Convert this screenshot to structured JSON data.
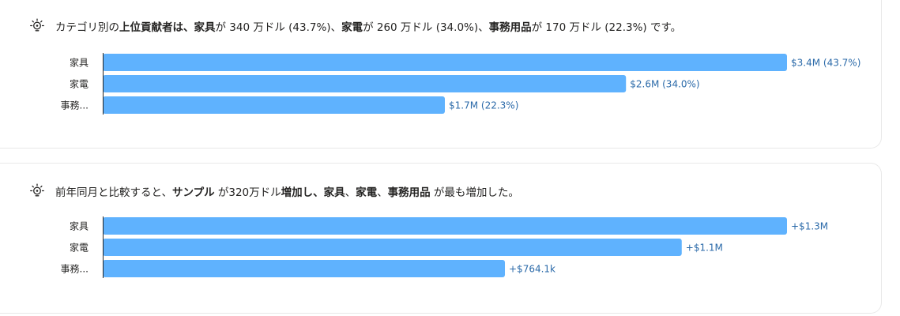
{
  "insights": [
    {
      "segments": [
        {
          "text": "カテゴリ別の",
          "bold": false
        },
        {
          "text": "上位貢献者は、家具",
          "bold": true
        },
        {
          "text": "が 340 万ドル (43.7%)、",
          "bold": false
        },
        {
          "text": "家電",
          "bold": true
        },
        {
          "text": "が 260 万ドル (34.0%)、",
          "bold": false
        },
        {
          "text": "事務用品",
          "bold": true
        },
        {
          "text": "が 170 万ドル (22.3%) です。",
          "bold": false
        }
      ]
    },
    {
      "segments": [
        {
          "text": "前年同月と比較すると、",
          "bold": false
        },
        {
          "text": "サンプル",
          "bold": true
        },
        {
          "text": " が320万ドル",
          "bold": false
        },
        {
          "text": "増加し、家具",
          "bold": true
        },
        {
          "text": "、",
          "bold": false
        },
        {
          "text": "家電",
          "bold": true
        },
        {
          "text": "、",
          "bold": false
        },
        {
          "text": "事務用品",
          "bold": true
        },
        {
          "text": " が最も増加した。",
          "bold": false
        }
      ]
    }
  ],
  "icon": "lightbulb-icon",
  "colors": {
    "bar": "#5fb2fe",
    "label": "#2b6aa9",
    "axis": "#252423",
    "category": "#252423"
  },
  "chart_data": [
    {
      "type": "bar",
      "orientation": "horizontal",
      "categories": [
        "家具",
        "家電",
        "事務..."
      ],
      "values": [
        3.4,
        2.6,
        1.7
      ],
      "unit": "$M",
      "data_labels": [
        "$3.4M (43.7%)",
        "$2.6M (34.0%)",
        "$1.7M (22.3%)"
      ],
      "xlim": [
        0,
        3.4
      ],
      "grid": false
    },
    {
      "type": "bar",
      "orientation": "horizontal",
      "categories": [
        "家具",
        "家電",
        "事務..."
      ],
      "values": [
        1.3,
        1.1,
        0.7641
      ],
      "unit": "$M",
      "data_labels": [
        "+$1.3M",
        "+$1.1M",
        "+$764.1k"
      ],
      "xlim": [
        0,
        1.3
      ],
      "grid": false
    }
  ]
}
